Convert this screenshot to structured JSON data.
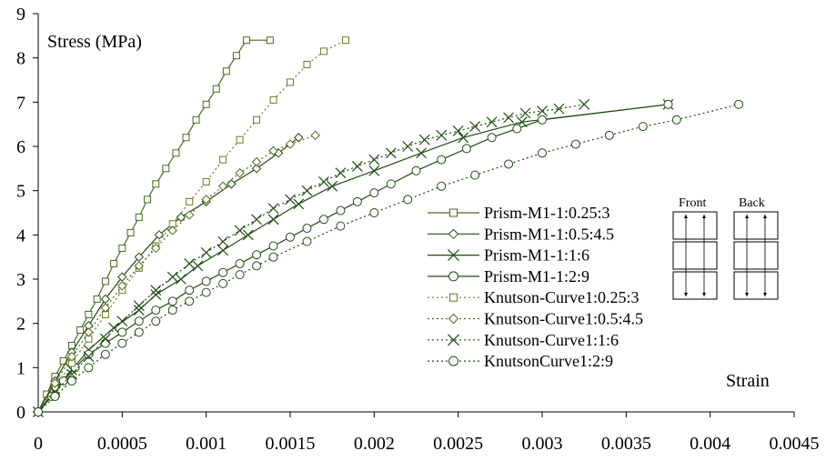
{
  "chart_data": {
    "type": "line",
    "ylabel": "Stress (MPa)",
    "xlabel": "Strain",
    "xlim": [
      0,
      0.0045
    ],
    "ylim": [
      0,
      9
    ],
    "x_ticks": [
      0,
      0.0005,
      0.001,
      0.0015,
      0.002,
      0.0025,
      0.003,
      0.0035,
      0.004,
      0.0045
    ],
    "x_tick_labels": [
      "0",
      "0.0005",
      "0.001",
      "0.0015",
      "0.002",
      "0.0025",
      "0.003",
      "0.0035",
      "0.004",
      "0.0045"
    ],
    "y_ticks": [
      0,
      1,
      2,
      3,
      4,
      5,
      6,
      7,
      8,
      9
    ],
    "y_tick_labels": [
      "0",
      "1",
      "2",
      "3",
      "4",
      "5",
      "6",
      "7",
      "8",
      "9"
    ],
    "grid": false,
    "legend_position": "right",
    "series": [
      {
        "name": "Prism-M1-1:0.25:3",
        "line": "solid",
        "marker": "square",
        "color": "#4a6b1e",
        "x": [
          0,
          5e-05,
          0.0001,
          0.00015,
          0.0002,
          0.00025,
          0.0003,
          0.00035,
          0.0004,
          0.00045,
          0.0005,
          0.00055,
          0.0006,
          0.00065,
          0.0007,
          0.00076,
          0.00082,
          0.00088,
          0.00094,
          0.001,
          0.00106,
          0.00112,
          0.00118,
          0.00124,
          0.00138
        ],
        "y": [
          0,
          0.4,
          0.8,
          1.15,
          1.5,
          1.85,
          2.2,
          2.55,
          2.95,
          3.35,
          3.7,
          4.05,
          4.4,
          4.8,
          5.15,
          5.5,
          5.85,
          6.2,
          6.6,
          6.95,
          7.3,
          7.7,
          8.05,
          8.4,
          8.4
        ]
      },
      {
        "name": "Prism-M1-1:0.5:4.5",
        "line": "solid",
        "marker": "diamond",
        "color": "#1f4d14",
        "x": [
          0,
          0.0001,
          0.0002,
          0.0003,
          0.0004,
          0.0005,
          0.0006,
          0.00072,
          0.00085,
          0.001,
          0.00115,
          0.0013,
          0.00143,
          0.00155
        ],
        "y": [
          0,
          0.7,
          1.35,
          1.95,
          2.55,
          3.05,
          3.5,
          4.0,
          4.4,
          4.75,
          5.15,
          5.5,
          5.85,
          6.2
        ]
      },
      {
        "name": "Prism-M1-1:1:6",
        "line": "solid",
        "marker": "x",
        "color": "#1f4d14",
        "x": [
          0,
          0.0001,
          0.0002,
          0.0003,
          0.00045,
          0.0006,
          0.0007,
          0.00085,
          0.00095,
          0.0011,
          0.00125,
          0.0014,
          0.00155,
          0.00175,
          0.002,
          0.00228,
          0.00253,
          0.00288,
          0.00375
        ],
        "y": [
          0,
          0.5,
          0.95,
          1.4,
          1.9,
          2.3,
          2.65,
          3.0,
          3.3,
          3.65,
          4.0,
          4.35,
          4.7,
          5.1,
          5.45,
          5.85,
          6.2,
          6.55,
          6.95
        ]
      },
      {
        "name": "Prism-M1-1:2:9",
        "line": "solid",
        "marker": "circle",
        "color": "#1f4d14",
        "x": [
          0,
          8e-05,
          0.00015,
          0.00022,
          0.0003,
          0.0004,
          0.0005,
          0.0006,
          0.0007,
          0.0008,
          0.0009,
          0.001,
          0.0011,
          0.0012,
          0.0013,
          0.0014,
          0.0015,
          0.0016,
          0.0017,
          0.0018,
          0.0019,
          0.002,
          0.0021,
          0.00225,
          0.0024,
          0.00255,
          0.0027,
          0.00285,
          0.003,
          0.00375
        ],
        "y": [
          0,
          0.35,
          0.7,
          1.0,
          1.3,
          1.55,
          1.8,
          2.05,
          2.3,
          2.5,
          2.75,
          2.95,
          3.15,
          3.35,
          3.55,
          3.75,
          3.95,
          4.15,
          4.35,
          4.55,
          4.75,
          4.95,
          5.15,
          5.45,
          5.7,
          5.95,
          6.2,
          6.4,
          6.6,
          6.95
        ]
      },
      {
        "name": "Knutson-Curve1:0.25:3",
        "line": "dotted",
        "marker": "square",
        "color": "#6b7a1e",
        "x": [
          0,
          0.0001,
          0.0002,
          0.0003,
          0.0004,
          0.0005,
          0.0006,
          0.0007,
          0.0008,
          0.0009,
          0.001,
          0.0011,
          0.0012,
          0.0013,
          0.0014,
          0.0015,
          0.0016,
          0.0017,
          0.00183
        ],
        "y": [
          0,
          0.55,
          1.1,
          1.65,
          2.2,
          2.75,
          3.25,
          3.75,
          4.25,
          4.75,
          5.2,
          5.7,
          6.15,
          6.6,
          7.05,
          7.45,
          7.85,
          8.15,
          8.4
        ]
      },
      {
        "name": "Knutson-Curve1:0.5:4.5",
        "line": "dotted",
        "marker": "diamond",
        "color": "#4a6b1e",
        "x": [
          0,
          0.0001,
          0.0002,
          0.0003,
          0.0004,
          0.0005,
          0.0006,
          0.0007,
          0.0008,
          0.0009,
          0.001,
          0.0011,
          0.0012,
          0.0013,
          0.0014,
          0.0015,
          0.00165
        ],
        "y": [
          0,
          0.65,
          1.25,
          1.8,
          2.35,
          2.85,
          3.3,
          3.7,
          4.1,
          4.45,
          4.8,
          5.1,
          5.4,
          5.65,
          5.9,
          6.05,
          6.25
        ]
      },
      {
        "name": "Knutson-Curve1:1:6",
        "line": "dotted",
        "marker": "x",
        "color": "#1f4d14",
        "x": [
          0,
          0.0001,
          0.0002,
          0.0003,
          0.0004,
          0.0005,
          0.0006,
          0.0007,
          0.0008,
          0.0009,
          0.001,
          0.0011,
          0.0012,
          0.0013,
          0.0014,
          0.0015,
          0.0016,
          0.0017,
          0.0018,
          0.0019,
          0.002,
          0.0021,
          0.0022,
          0.0023,
          0.0024,
          0.0025,
          0.0026,
          0.0027,
          0.0028,
          0.0029,
          0.003,
          0.0031,
          0.00325
        ],
        "y": [
          0,
          0.45,
          0.85,
          1.25,
          1.65,
          2.05,
          2.4,
          2.75,
          3.05,
          3.35,
          3.6,
          3.85,
          4.1,
          4.35,
          4.6,
          4.8,
          5.0,
          5.2,
          5.4,
          5.55,
          5.7,
          5.85,
          6.0,
          6.15,
          6.25,
          6.35,
          6.45,
          6.55,
          6.65,
          6.75,
          6.8,
          6.85,
          6.95
        ]
      },
      {
        "name": "KnutsonCurve1:2:9",
        "line": "dotted",
        "marker": "circle",
        "color": "#1f4d14",
        "x": [
          0,
          0.0001,
          0.0002,
          0.0003,
          0.0004,
          0.0005,
          0.0006,
          0.0007,
          0.0008,
          0.0009,
          0.001,
          0.0011,
          0.0012,
          0.0013,
          0.0014,
          0.0016,
          0.0018,
          0.002,
          0.0022,
          0.0024,
          0.0026,
          0.0028,
          0.003,
          0.0032,
          0.0034,
          0.0036,
          0.0038,
          0.00417
        ],
        "y": [
          0,
          0.35,
          0.7,
          1.0,
          1.3,
          1.55,
          1.8,
          2.05,
          2.3,
          2.5,
          2.7,
          2.9,
          3.1,
          3.3,
          3.5,
          3.85,
          4.2,
          4.5,
          4.8,
          5.1,
          5.35,
          5.6,
          5.85,
          6.05,
          6.25,
          6.45,
          6.6,
          6.95
        ]
      }
    ]
  },
  "inset": {
    "front_label": "Front",
    "back_label": "Back"
  }
}
